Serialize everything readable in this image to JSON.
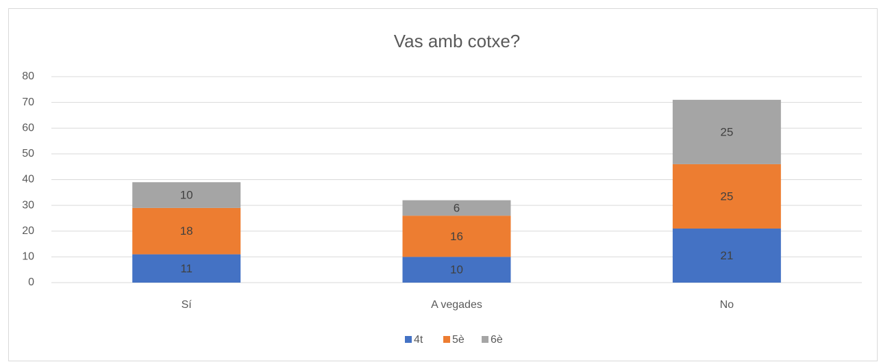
{
  "chart_data": {
    "type": "bar",
    "stacked": true,
    "title": "Vas amb cotxe?",
    "categories": [
      "Sí",
      "A vegades",
      "No"
    ],
    "series": [
      {
        "name": "4t",
        "color": "#4472c4",
        "values": [
          11,
          10,
          21
        ]
      },
      {
        "name": "5è",
        "color": "#ed7d31",
        "values": [
          18,
          16,
          25
        ]
      },
      {
        "name": "6è",
        "color": "#a5a5a5",
        "values": [
          10,
          6,
          25
        ]
      }
    ],
    "ylim": [
      0,
      80
    ],
    "yticks": [
      0,
      10,
      20,
      30,
      40,
      50,
      60,
      70,
      80
    ],
    "grid": true,
    "legend": "bottom"
  }
}
